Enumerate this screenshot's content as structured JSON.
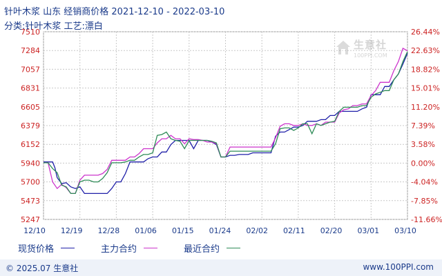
{
  "header": {
    "title": "针叶木浆 山东 经销商价格 2021-12-10 - 2022-03-10",
    "subtitle": "分类:针叶木浆 工艺:漂白"
  },
  "watermark": {
    "name": "生意社",
    "url": "100PPI.COM"
  },
  "footer": {
    "copyright": "© 2025.07 生意社",
    "site": "www.100PPI.com"
  },
  "colors": {
    "series1": "#1f1fa8",
    "series2": "#cc33cc",
    "series3": "#2e8b57",
    "left_axis": "#cc2222",
    "right_axis": "#cc2222",
    "grid": "#c8c8c8"
  },
  "chart_data": {
    "type": "line",
    "title": "针叶木浆 山东 经销商价格 2021-12-10 - 2022-03-10",
    "x_ticks": [
      "12/10",
      "12/19",
      "12/28",
      "01/06",
      "01/15",
      "01/24",
      "02/02",
      "02/11",
      "02/20",
      "03/01",
      "03/10"
    ],
    "y_left_ticks": [
      "7510",
      "7284",
      "7057",
      "6831",
      "6605",
      "6379",
      "6152",
      "5940",
      "5700",
      "5473",
      "5247"
    ],
    "y_right_ticks": [
      "26.44%",
      "22.63%",
      "18.82%",
      "15.01%",
      "11.20%",
      "7.39%",
      "3.58%",
      "0.00%",
      "-4.04%",
      "-7.85%",
      "-11.66%"
    ],
    "ylim": [
      5247,
      7510
    ],
    "grid": true,
    "legend_position": "bottom",
    "series": [
      {
        "name": "现货价格",
        "color": "#1f1fa8",
        "points": [
          [
            0,
            5940
          ],
          [
            2,
            5940
          ],
          [
            2.5,
            5870
          ],
          [
            3,
            5750
          ],
          [
            4,
            5680
          ],
          [
            5,
            5690
          ],
          [
            6,
            5640
          ],
          [
            7,
            5620
          ],
          [
            8,
            5640
          ],
          [
            9,
            5560
          ],
          [
            10,
            5560
          ],
          [
            11,
            5560
          ],
          [
            13,
            5560
          ],
          [
            14,
            5560
          ],
          [
            15,
            5620
          ],
          [
            16,
            5700
          ],
          [
            17,
            5700
          ],
          [
            18,
            5800
          ],
          [
            19,
            5940
          ],
          [
            20,
            5940
          ],
          [
            22,
            5940
          ],
          [
            23,
            5980
          ],
          [
            24,
            6000
          ],
          [
            25,
            6000
          ],
          [
            26,
            6060
          ],
          [
            27,
            6060
          ],
          [
            28,
            6150
          ],
          [
            29,
            6200
          ],
          [
            30,
            6200
          ],
          [
            31,
            6200
          ],
          [
            32,
            6200
          ],
          [
            33,
            6100
          ],
          [
            34,
            6200
          ],
          [
            35,
            6200
          ],
          [
            36,
            6200
          ],
          [
            37,
            6180
          ],
          [
            38,
            6150
          ],
          [
            39,
            6000
          ],
          [
            40,
            6000
          ],
          [
            41,
            6020
          ],
          [
            42,
            6020
          ],
          [
            43,
            6030
          ],
          [
            44,
            6030
          ],
          [
            45,
            6030
          ],
          [
            46,
            6050
          ],
          [
            47,
            6050
          ],
          [
            48,
            6050
          ],
          [
            49,
            6050
          ],
          [
            50,
            6050
          ],
          [
            51,
            6250
          ],
          [
            52,
            6300
          ],
          [
            53,
            6300
          ],
          [
            54,
            6330
          ],
          [
            55,
            6360
          ],
          [
            56,
            6360
          ],
          [
            57,
            6380
          ],
          [
            58,
            6430
          ],
          [
            59,
            6430
          ],
          [
            60,
            6430
          ],
          [
            61,
            6450
          ],
          [
            62,
            6450
          ],
          [
            63,
            6500
          ],
          [
            64,
            6500
          ],
          [
            65,
            6550
          ],
          [
            66,
            6550
          ],
          [
            67,
            6550
          ],
          [
            68,
            6550
          ],
          [
            69,
            6550
          ],
          [
            70,
            6580
          ],
          [
            71,
            6600
          ],
          [
            72,
            6750
          ],
          [
            73,
            6750
          ],
          [
            74,
            6750
          ],
          [
            75,
            6850
          ],
          [
            76,
            6850
          ],
          [
            77,
            6930
          ],
          [
            78,
            7000
          ],
          [
            79,
            7120
          ],
          [
            80,
            7250
          ]
        ]
      },
      {
        "name": "主力合约",
        "color": "#cc33cc",
        "points": [
          [
            0,
            5930
          ],
          [
            1,
            5930
          ],
          [
            2,
            5700
          ],
          [
            3,
            5620
          ],
          [
            4,
            5670
          ],
          [
            5,
            5630
          ],
          [
            6,
            5560
          ],
          [
            7,
            5560
          ],
          [
            8,
            5720
          ],
          [
            9,
            5780
          ],
          [
            10,
            5780
          ],
          [
            11,
            5780
          ],
          [
            12,
            5780
          ],
          [
            13,
            5800
          ],
          [
            14,
            5850
          ],
          [
            15,
            5960
          ],
          [
            16,
            5960
          ],
          [
            17,
            5960
          ],
          [
            18,
            5960
          ],
          [
            19,
            6000
          ],
          [
            20,
            6000
          ],
          [
            21,
            6040
          ],
          [
            22,
            6100
          ],
          [
            23,
            6100
          ],
          [
            24,
            6100
          ],
          [
            25,
            6170
          ],
          [
            26,
            6220
          ],
          [
            27,
            6220
          ],
          [
            28,
            6260
          ],
          [
            29,
            6220
          ],
          [
            30,
            6220
          ],
          [
            31,
            6160
          ],
          [
            32,
            6220
          ],
          [
            33,
            6210
          ],
          [
            34,
            6210
          ],
          [
            35,
            6200
          ],
          [
            36,
            6180
          ],
          [
            37,
            6180
          ],
          [
            38,
            6160
          ],
          [
            39,
            6000
          ],
          [
            40,
            6000
          ],
          [
            41,
            6120
          ],
          [
            42,
            6120
          ],
          [
            43,
            6120
          ],
          [
            44,
            6120
          ],
          [
            45,
            6120
          ],
          [
            46,
            6120
          ],
          [
            47,
            6120
          ],
          [
            48,
            6120
          ],
          [
            49,
            6120
          ],
          [
            50,
            6120
          ],
          [
            51,
            6230
          ],
          [
            52,
            6370
          ],
          [
            53,
            6400
          ],
          [
            54,
            6400
          ],
          [
            55,
            6380
          ],
          [
            56,
            6380
          ],
          [
            57,
            6400
          ],
          [
            58,
            6380
          ],
          [
            59,
            6380
          ],
          [
            60,
            6400
          ],
          [
            61,
            6380
          ],
          [
            62,
            6420
          ],
          [
            63,
            6420
          ],
          [
            64,
            6420
          ],
          [
            65,
            6530
          ],
          [
            66,
            6570
          ],
          [
            67,
            6580
          ],
          [
            68,
            6620
          ],
          [
            69,
            6620
          ],
          [
            70,
            6640
          ],
          [
            71,
            6640
          ],
          [
            72,
            6740
          ],
          [
            73,
            6800
          ],
          [
            74,
            6900
          ],
          [
            75,
            6900
          ],
          [
            76,
            6900
          ],
          [
            77,
            7040
          ],
          [
            78,
            7150
          ],
          [
            79,
            7310
          ],
          [
            80,
            7280
          ]
        ]
      },
      {
        "name": "最近合约",
        "color": "#2e8b57",
        "points": [
          [
            0,
            5930
          ],
          [
            1,
            5930
          ],
          [
            2,
            5860
          ],
          [
            3,
            5810
          ],
          [
            4,
            5660
          ],
          [
            5,
            5640
          ],
          [
            6,
            5560
          ],
          [
            7,
            5560
          ],
          [
            8,
            5700
          ],
          [
            9,
            5720
          ],
          [
            10,
            5720
          ],
          [
            11,
            5700
          ],
          [
            12,
            5700
          ],
          [
            13,
            5740
          ],
          [
            14,
            5810
          ],
          [
            15,
            5930
          ],
          [
            16,
            5930
          ],
          [
            17,
            5930
          ],
          [
            18,
            5940
          ],
          [
            19,
            5960
          ],
          [
            20,
            5960
          ],
          [
            21,
            6000
          ],
          [
            22,
            6030
          ],
          [
            23,
            6030
          ],
          [
            24,
            6050
          ],
          [
            25,
            6260
          ],
          [
            26,
            6270
          ],
          [
            27,
            6300
          ],
          [
            28,
            6220
          ],
          [
            29,
            6200
          ],
          [
            30,
            6190
          ],
          [
            31,
            6100
          ],
          [
            32,
            6200
          ],
          [
            33,
            6200
          ],
          [
            34,
            6200
          ],
          [
            35,
            6200
          ],
          [
            36,
            6200
          ],
          [
            37,
            6190
          ],
          [
            38,
            6170
          ],
          [
            39,
            6000
          ],
          [
            40,
            6000
          ],
          [
            41,
            6070
          ],
          [
            42,
            6070
          ],
          [
            43,
            6070
          ],
          [
            44,
            6070
          ],
          [
            45,
            6070
          ],
          [
            46,
            6070
          ],
          [
            47,
            6070
          ],
          [
            48,
            6070
          ],
          [
            49,
            6070
          ],
          [
            50,
            6070
          ],
          [
            51,
            6160
          ],
          [
            52,
            6340
          ],
          [
            53,
            6350
          ],
          [
            54,
            6350
          ],
          [
            55,
            6320
          ],
          [
            56,
            6350
          ],
          [
            57,
            6400
          ],
          [
            58,
            6400
          ],
          [
            59,
            6280
          ],
          [
            60,
            6400
          ],
          [
            61,
            6380
          ],
          [
            62,
            6400
          ],
          [
            63,
            6420
          ],
          [
            64,
            6430
          ],
          [
            65,
            6550
          ],
          [
            66,
            6600
          ],
          [
            67,
            6600
          ],
          [
            68,
            6600
          ],
          [
            69,
            6600
          ],
          [
            70,
            6620
          ],
          [
            71,
            6620
          ],
          [
            72,
            6720
          ],
          [
            73,
            6760
          ],
          [
            74,
            6780
          ],
          [
            75,
            6800
          ],
          [
            76,
            6800
          ],
          [
            77,
            6930
          ],
          [
            78,
            7000
          ],
          [
            79,
            7150
          ],
          [
            80,
            7270
          ]
        ]
      }
    ]
  }
}
